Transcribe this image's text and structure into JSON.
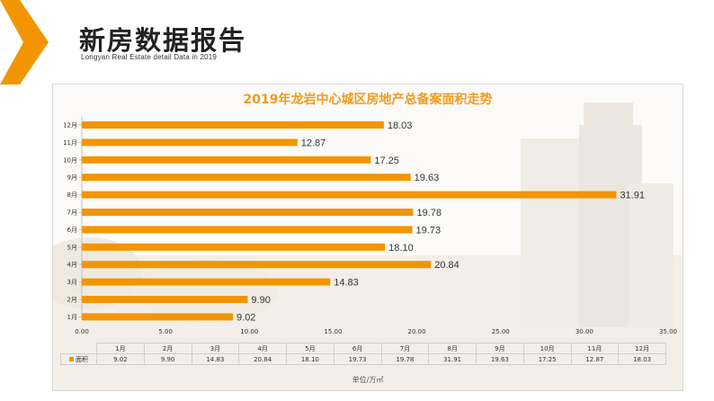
{
  "header": {
    "title": "新房数据报告",
    "subtitle": "Longyan Real Estate detail Data in 2019"
  },
  "colors": {
    "accent": "#f29500",
    "title_color": "#f19a1c"
  },
  "icons": {
    "corner": "chevron-right-icon"
  },
  "chart_data": {
    "type": "bar",
    "orientation": "horizontal",
    "title": "2019年龙岩中心城区房地产总备案面积走势",
    "categories": [
      "1月",
      "2月",
      "3月",
      "4月",
      "5月",
      "6月",
      "7月",
      "8月",
      "9月",
      "10月",
      "11月",
      "12月"
    ],
    "series": [
      {
        "name": "面积",
        "values": [
          9.02,
          9.9,
          14.83,
          20.84,
          18.1,
          19.73,
          19.78,
          31.91,
          19.63,
          17.25,
          12.87,
          18.03
        ]
      }
    ],
    "value_labels": [
      "9.02",
      "9.90",
      "14.83",
      "20.84",
      "18.10",
      "19.73",
      "19.78",
      "31.91",
      "19.63",
      "17.25",
      "12.87",
      "18.03"
    ],
    "xlim": [
      0,
      35
    ],
    "x_ticks": [
      "0.00",
      "5.00",
      "10.00",
      "15.00",
      "20.00",
      "25.00",
      "30.00",
      "35.00"
    ],
    "unit_label": "单位/万㎡",
    "grid": false,
    "legend": "data-table"
  }
}
